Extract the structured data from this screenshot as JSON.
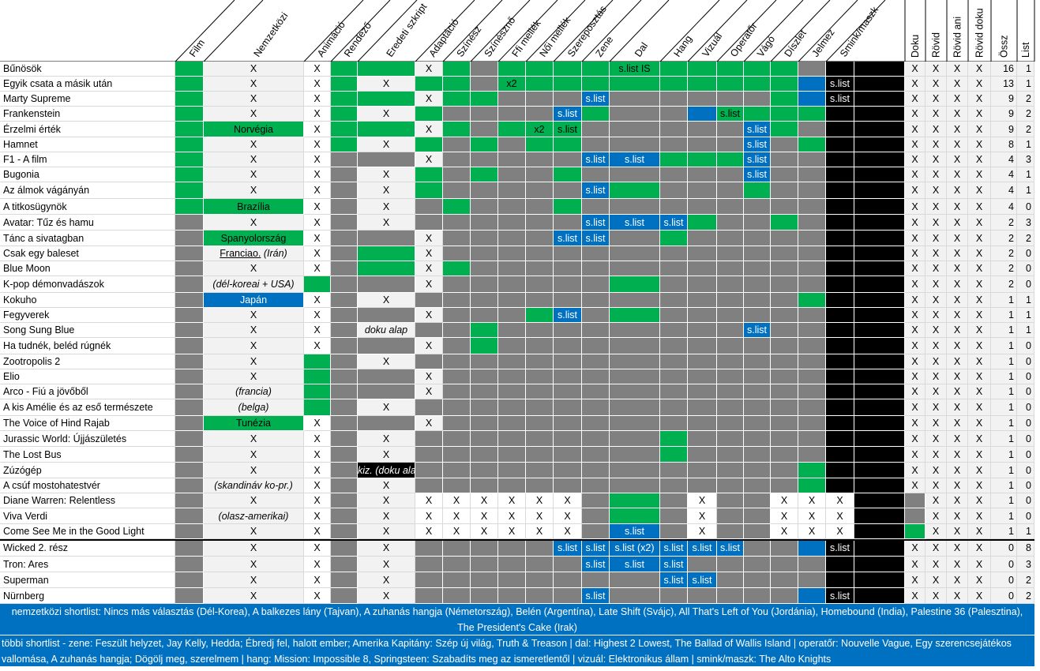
{
  "columns": [
    {
      "key": "title",
      "label": ""
    },
    {
      "key": "film",
      "label": "Film"
    },
    {
      "key": "nemzetkozi",
      "label": "Nemzetközi"
    },
    {
      "key": "animacio",
      "label": "Animáció"
    },
    {
      "key": "rendezo",
      "label": "Rendező"
    },
    {
      "key": "eredeti",
      "label": "Eredeti szkript"
    },
    {
      "key": "adaptacio",
      "label": "Adaptáció"
    },
    {
      "key": "szinesz",
      "label": "Színész"
    },
    {
      "key": "szinesno",
      "label": "Színésznő"
    },
    {
      "key": "ffi",
      "label": "Ffi mellék"
    },
    {
      "key": "noi",
      "label": "Női mellék"
    },
    {
      "key": "szereposztas",
      "label": "Szereposztás"
    },
    {
      "key": "zene",
      "label": "Zene"
    },
    {
      "key": "dal",
      "label": "Dal"
    },
    {
      "key": "hang",
      "label": "Hang"
    },
    {
      "key": "vizual",
      "label": "Vizuál"
    },
    {
      "key": "operator",
      "label": "Operatőr"
    },
    {
      "key": "vago",
      "label": "Vágó"
    },
    {
      "key": "diszlet",
      "label": "Díszlet"
    },
    {
      "key": "jelmez",
      "label": "Jelmez"
    },
    {
      "key": "smink",
      "label": "Smink/maszk"
    },
    {
      "key": "black",
      "label": ""
    },
    {
      "key": "doku",
      "label": "Doku"
    },
    {
      "key": "rovid",
      "label": "Rövid"
    },
    {
      "key": "rovidani",
      "label": "Rövid ani"
    },
    {
      "key": "roviddoku",
      "label": "Rövid doku"
    },
    {
      "key": "ossz",
      "label": "Össz"
    },
    {
      "key": "list",
      "label": "List"
    }
  ],
  "legend": {
    "W": "#ffffff",
    "L": "#f2f2f2",
    "G": "#00b050",
    "R": "#808080",
    "B": "#0070c0",
    "K": "#000000"
  },
  "rows": [
    {
      "title": "Bűnösök",
      "colors": "GLWGGLGRGGGGGGGGGGRKLLLLLL",
      "cells": {
        "2": "X",
        "3": "X",
        "6": "X",
        "13": "s.list IS",
        "22": "X",
        "23": "X",
        "24": "X",
        "25": "X",
        "26": "16",
        "27": "1"
      }
    },
    {
      "title": "Egyik csata a másik után",
      "colors": "GLWGLGGRGGGGGGGGGGBKLLLLLL",
      "cells": {
        "2": "X",
        "3": "X",
        "5": "X",
        "9": "x2",
        "20": "s.list",
        "22": "X",
        "23": "X",
        "24": "X",
        "25": "X",
        "26": "13",
        "27": "1"
      }
    },
    {
      "title": "Marty Supreme",
      "colors": "GLWGGLGGRRRBRRRRRGBKLLLLLL",
      "cells": {
        "2": "X",
        "3": "X",
        "6": "X",
        "12": "s.list",
        "20": "s.list",
        "22": "X",
        "23": "X",
        "24": "X",
        "25": "X",
        "26": "9",
        "27": "2"
      }
    },
    {
      "title": "Frankenstein",
      "colors": "GLWGLGRRRRBGRRBGGGGKLLLLLL",
      "cells": {
        "2": "X",
        "3": "X",
        "5": "X",
        "11": "s.list",
        "16": "s.list",
        "22": "X",
        "23": "X",
        "24": "X",
        "25": "X",
        "26": "9",
        "27": "2"
      }
    },
    {
      "title": "Érzelmi érték",
      "colors": "GGWGGLGRGGGRRRRRBGRKLLLLLL",
      "cells": {
        "2": "Norvégia",
        "3": "X",
        "6": "X",
        "10": "x2",
        "11": "s.list",
        "17": "s.list",
        "22": "X",
        "23": "X",
        "24": "X",
        "25": "X",
        "26": "9",
        "27": "2"
      }
    },
    {
      "title": "Hamnet",
      "colors": "GLWGLGRGRGGRRRRRBRGKLLLLLL",
      "cells": {
        "2": "X",
        "3": "X",
        "5": "X",
        "17": "s.list",
        "22": "X",
        "23": "X",
        "24": "X",
        "25": "X",
        "26": "8",
        "27": "1"
      }
    },
    {
      "title": "F1 - A film",
      "colors": "GLWRRLRRRRRBBGGGBRRKLLLLLL",
      "cells": {
        "2": "X",
        "3": "X",
        "6": "X",
        "12": "s.list",
        "13": "s.list",
        "17": "s.list",
        "22": "X",
        "23": "X",
        "24": "X",
        "25": "X",
        "26": "4",
        "27": "3"
      }
    },
    {
      "title": "Bugonia",
      "colors": "GLWRLGRGRRGRRRRRBRRKLLLLLL",
      "cells": {
        "2": "X",
        "3": "X",
        "5": "X",
        "17": "s.list",
        "22": "X",
        "23": "X",
        "24": "X",
        "25": "X",
        "26": "4",
        "27": "1"
      }
    },
    {
      "title": "Az álmok vágányán",
      "colors": "GLWRLGRRRRRBGRRRGRRKLLLLLL",
      "cells": {
        "2": "X",
        "3": "X",
        "5": "X",
        "12": "s.list",
        "22": "X",
        "23": "X",
        "24": "X",
        "25": "X",
        "26": "4",
        "27": "1"
      }
    },
    {
      "title": "A titkosügynök",
      "colors": "GGWRLRGRRRGRRRRRRRRKLLLLLL",
      "cells": {
        "2": "Brazília",
        "3": "X",
        "5": "X",
        "22": "X",
        "23": "X",
        "24": "X",
        "25": "X",
        "26": "4",
        "27": "0"
      }
    },
    {
      "title": "Avatar: Tűz és hamu",
      "colors": "RLWRLRRRRRRBBBGRRGRKLLLLLL",
      "cells": {
        "2": "X",
        "3": "X",
        "5": "X",
        "12": "s.list",
        "13": "s.list",
        "14": "s.list",
        "22": "X",
        "23": "X",
        "24": "X",
        "25": "X",
        "26": "2",
        "27": "3"
      }
    },
    {
      "title": "Tánc a sivatagban",
      "colors": "RGWRRLRRRRBBRGRRRRRKLLLLLL",
      "cells": {
        "2": "Spanyolország",
        "3": "X",
        "6": "X",
        "11": "s.list",
        "12": "s.list",
        "22": "X",
        "23": "X",
        "24": "X",
        "25": "X",
        "26": "2",
        "27": "2"
      }
    },
    {
      "title": "Csak egy baleset",
      "colors": "RLWRGLRRRRRRRRRRRRRKLLLLLL",
      "cells": {
        "2": "Franciao. (Irán)",
        "3": "X",
        "6": "X",
        "22": "X",
        "23": "X",
        "24": "X",
        "25": "X",
        "26": "2",
        "27": "0"
      }
    },
    {
      "title": "Blue Moon",
      "colors": "RLWRGLGRRRRRRRRRRRRKLLLLLL",
      "cells": {
        "2": "X",
        "3": "X",
        "6": "X",
        "22": "X",
        "23": "X",
        "24": "X",
        "25": "X",
        "26": "2",
        "27": "0"
      }
    },
    {
      "title": "K-pop démonvadászok",
      "colors": "RLGRRLRRRRRRGRRRRRRKLLLLLL",
      "cells": {
        "2": "(dél-koreai + USA)",
        "6": "X",
        "22": "X",
        "23": "X",
        "24": "X",
        "25": "X",
        "26": "2",
        "27": "0"
      }
    },
    {
      "title": "Kokuho",
      "colors": "RBWRLRRRRRRRRRRRRRGKLLLLLL",
      "cells": {
        "2": "Japán",
        "3": "X",
        "5": "X",
        "22": "X",
        "23": "X",
        "24": "X",
        "25": "X",
        "26": "1",
        "27": "1"
      }
    },
    {
      "title": "Fegyverek",
      "colors": "RLWRRLRRRGBRGRRRRRRKLLLLLL",
      "cells": {
        "2": "X",
        "3": "X",
        "6": "X",
        "11": "s.list",
        "22": "X",
        "23": "X",
        "24": "X",
        "25": "X",
        "26": "1",
        "27": "1"
      }
    },
    {
      "title": "Song Sung Blue",
      "colors": "RLWRLRRGRRRRRRRRBRRKLLLLLL",
      "cells": {
        "2": "X",
        "3": "X",
        "5": "doku alap",
        "17": "s.list",
        "22": "X",
        "23": "X",
        "24": "X",
        "25": "X",
        "26": "1",
        "27": "1"
      }
    },
    {
      "title": "Ha tudnék, beléd rúgnék",
      "colors": "RLWRRLRGRRRRRRRRRRRKLLLLLL",
      "cells": {
        "2": "X",
        "3": "X",
        "6": "X",
        "22": "X",
        "23": "X",
        "24": "X",
        "25": "X",
        "26": "1",
        "27": "0"
      }
    },
    {
      "title": "Zootropolis 2",
      "colors": "RLGRLRRRRRRRRRRRRRRKLLLLLL",
      "cells": {
        "2": "X",
        "5": "X",
        "22": "X",
        "23": "X",
        "24": "X",
        "25": "X",
        "26": "1",
        "27": "0"
      }
    },
    {
      "title": "Elio",
      "colors": "RLGRRLRRRRRRRRRRRRRKLLLLLL",
      "cells": {
        "2": "X",
        "6": "X",
        "22": "X",
        "23": "X",
        "24": "X",
        "25": "X",
        "26": "1",
        "27": "0"
      }
    },
    {
      "title": "Arco - Fiú a jövőből",
      "colors": "RLGRRLRRRRRRRRRRRRRKLLLLLL",
      "cells": {
        "2": "(francia)",
        "6": "X",
        "22": "X",
        "23": "X",
        "24": "X",
        "25": "X",
        "26": "1",
        "27": "0"
      }
    },
    {
      "title": "A kis Amélie és az eső természete",
      "colors": "RLGRLRRRRRRRRRRRRRRKLLLLLL",
      "cells": {
        "2": "(belga)",
        "5": "X",
        "22": "X",
        "23": "X",
        "24": "X",
        "25": "X",
        "26": "1",
        "27": "0"
      }
    },
    {
      "title": "The Voice of Hind Rajab",
      "colors": "RGWRRLRRRRRRRRRRRRRKLLLLLL",
      "cells": {
        "2": "Tunézia",
        "3": "X",
        "6": "X",
        "22": "X",
        "23": "X",
        "24": "X",
        "25": "X",
        "26": "1",
        "27": "0"
      }
    },
    {
      "title": "Jurassic World: Újjászületés",
      "colors": "RLWRLRRRRRRRRGRRRRRKLLLLLL",
      "cells": {
        "2": "X",
        "3": "X",
        "5": "X",
        "22": "X",
        "23": "X",
        "24": "X",
        "25": "X",
        "26": "1",
        "27": "0"
      }
    },
    {
      "title": "The Lost Bus",
      "colors": "RLWRLRRRRRRRRGRRRRRKLLLLLL",
      "cells": {
        "2": "X",
        "3": "X",
        "5": "X",
        "22": "X",
        "23": "X",
        "24": "X",
        "25": "X",
        "26": "1",
        "27": "0"
      }
    },
    {
      "title": "Zúzógép",
      "colors": "RLWRKRRRRRRRRRRRRRGKLLLLLL",
      "cells": {
        "2": "X",
        "3": "X",
        "5": "kiz. (doku alap)",
        "22": "X",
        "23": "X",
        "24": "X",
        "25": "X",
        "26": "1",
        "27": "0"
      }
    },
    {
      "title": "A csúf mostohatestvér",
      "colors": "RLWRLRRRRRRRRRRRRRGKLLLLLL",
      "cells": {
        "2": "(skandináv ko-pr.)",
        "3": "X",
        "5": "X",
        "22": "X",
        "23": "X",
        "24": "X",
        "25": "X",
        "26": "1",
        "27": "0"
      }
    },
    {
      "title": "Diane Warren: Relentless",
      "colors": "RLWRLWWWWWWRGRWRRWWWKRLLLLL",
      "cells": {
        "2": "X",
        "3": "X",
        "5": "X",
        "6": "X",
        "7": "X",
        "8": "X",
        "9": "X",
        "10": "X",
        "11": "X",
        "15": "X",
        "18": "X",
        "19": "X",
        "20": "X",
        "23": "X",
        "24": "X",
        "25": "X",
        "26": "1",
        "27": "0"
      }
    },
    {
      "title": "Viva Verdi",
      "colors": "RLWRLWWWWWWRGRWRRWWWKRLLLLL",
      "cells": {
        "2": "(olasz-amerikai)",
        "3": "X",
        "5": "X",
        "6": "X",
        "7": "X",
        "8": "X",
        "9": "X",
        "10": "X",
        "11": "X",
        "15": "X",
        "18": "X",
        "19": "X",
        "20": "X",
        "23": "X",
        "24": "X",
        "25": "X",
        "26": "1",
        "27": "0"
      }
    },
    {
      "title": "Come See Me in the Good Light",
      "colors": "RLWRLWWWWWWRBRWRRWWWKGLLLLL",
      "cells": {
        "2": "X",
        "3": "X",
        "5": "X",
        "6": "X",
        "7": "X",
        "8": "X",
        "9": "X",
        "10": "X",
        "11": "X",
        "13": "s.list",
        "15": "X",
        "18": "X",
        "19": "X",
        "20": "X",
        "23": "X",
        "24": "X",
        "25": "X",
        "26": "1",
        "27": "1"
      }
    },
    {
      "title": "Wicked 2. rész",
      "colors": "RLWRLRRRRRBBBBBBRRBKLLLLLL",
      "cells": {
        "2": "X",
        "3": "X",
        "5": "X",
        "11": "s.list",
        "12": "s.list",
        "13": "s.list (x2)",
        "14": "s.list",
        "15": "s.list",
        "16": "s.list",
        "20": "s.list",
        "22": "X",
        "23": "X",
        "24": "X",
        "25": "X",
        "26": "0",
        "27": "8"
      }
    },
    {
      "title": "Tron: Ares",
      "colors": "RLWRLRRRRRRBBBRRRRRKLLLLLL",
      "cells": {
        "2": "X",
        "3": "X",
        "5": "X",
        "12": "s.list",
        "13": "s.list",
        "14": "s.list",
        "22": "X",
        "23": "X",
        "24": "X",
        "25": "X",
        "26": "0",
        "27": "3"
      }
    },
    {
      "title": "Superman",
      "colors": "RLWRLRRRRRRRRBBRRRRKLLLLLL",
      "cells": {
        "2": "X",
        "3": "X",
        "5": "X",
        "14": "s.list",
        "15": "s.list",
        "22": "X",
        "23": "X",
        "24": "X",
        "25": "X",
        "26": "0",
        "27": "2"
      }
    },
    {
      "title": "Nürnberg",
      "colors": "RLWRLRRRRRRBRRRRRRBKLLLLLL",
      "cells": {
        "2": "X",
        "3": "X",
        "5": "X",
        "12": "s.list",
        "20": "s.list",
        "22": "X",
        "23": "X",
        "24": "X",
        "25": "X",
        "26": "0",
        "27": "2"
      }
    }
  ],
  "footer": {
    "line1": "nemzetközi shortlist:  Nincs más választás (Dél-Korea), A balkezes lány (Tajvan), A zuhanás hangja (Németország), Belén (Argentína), Late Shift (Svájc), All That's Left of You (Jordánia), Homebound (India), Palestine 36 (Palesztina), The President's Cake (Irak)",
    "line2": "többi shortlist - zene: Feszült helyzet, Jay Kelly, Hedda; Ébredj fel, halott ember; Amerika Kapitány: Szép új világ, Truth & Treason  | dal: Highest 2 Lowest, The Ballad of Wallis Island  | operatőr: Nouvelle Vague, Egy szerencsejátékos vallomása, A zuhanás hangja; Dögölj meg, szerelmem  | hang: Mission: Impossible 8, Springsteen: Szabadíts meg az ismeretlentől  | vizuál: Elektronikus állam  | smink/maszk: The Alto Knights"
  }
}
